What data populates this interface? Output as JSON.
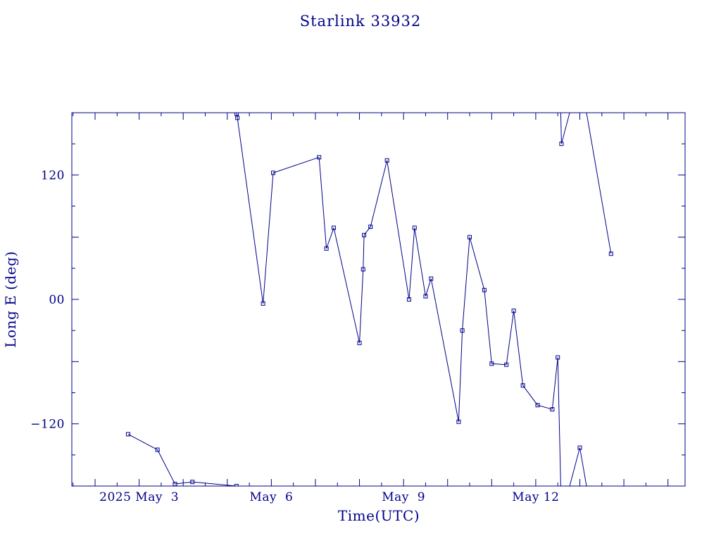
{
  "chart_data": {
    "type": "line",
    "title": "Starlink 33932",
    "xlabel": "Time(UTC)",
    "ylabel": "Long E (deg)",
    "color": "#00008b",
    "xlim": [
      "2025-05-01T11:20",
      "2025-05-15T09:20"
    ],
    "ylim": [
      -180,
      180
    ],
    "x_ticks": [
      {
        "date": "2025-05-03",
        "label": "2025 May  3"
      },
      {
        "date": "2025-05-06",
        "label": "May  6"
      },
      {
        "date": "2025-05-09",
        "label": "May  9"
      },
      {
        "date": "2025-05-12",
        "label": "May 12"
      }
    ],
    "y_ticks": [
      {
        "value": 120,
        "label": "120"
      },
      {
        "value": 0,
        "label": "00"
      },
      {
        "value": -120,
        "label": "−120"
      }
    ],
    "grid": false,
    "series": [
      {
        "wrap": true,
        "points": [
          {
            "t": "2025-05-02T18:00",
            "lon": -130
          },
          {
            "t": "2025-05-03T10:00",
            "lon": -145
          },
          {
            "t": "2025-05-03T19:30",
            "lon": -178
          },
          {
            "t": "2025-05-04T05:00",
            "lon": -176
          },
          {
            "t": "2025-05-05T05:00",
            "lon": -180
          },
          {
            "t": "2025-05-05T05:05",
            "lon": 179
          },
          {
            "t": "2025-05-05T05:30",
            "lon": 175
          },
          {
            "t": "2025-05-05T19:30",
            "lon": -4
          },
          {
            "t": "2025-05-06T01:00",
            "lon": 122
          },
          {
            "t": "2025-05-07T02:00",
            "lon": 137
          },
          {
            "t": "2025-05-07T06:00",
            "lon": 49
          },
          {
            "t": "2025-05-07T10:00",
            "lon": 69
          },
          {
            "t": "2025-05-08T00:00",
            "lon": -42
          },
          {
            "t": "2025-05-08T02:00",
            "lon": 29
          },
          {
            "t": "2025-05-08T02:30",
            "lon": 62
          },
          {
            "t": "2025-05-08T06:00",
            "lon": 70
          },
          {
            "t": "2025-05-08T15:00",
            "lon": 134
          },
          {
            "t": "2025-05-09T03:00",
            "lon": 0
          },
          {
            "t": "2025-05-09T06:00",
            "lon": 69
          },
          {
            "t": "2025-05-09T12:00",
            "lon": 3
          },
          {
            "t": "2025-05-09T15:00",
            "lon": 20
          },
          {
            "t": "2025-05-10T06:00",
            "lon": -118
          },
          {
            "t": "2025-05-10T08:00",
            "lon": -30
          },
          {
            "t": "2025-05-10T12:00",
            "lon": 60
          },
          {
            "t": "2025-05-10T20:00",
            "lon": 9
          },
          {
            "t": "2025-05-11T00:00",
            "lon": -62
          },
          {
            "t": "2025-05-11T08:00",
            "lon": -63
          },
          {
            "t": "2025-05-11T12:00",
            "lon": -11
          },
          {
            "t": "2025-05-11T17:00",
            "lon": -83
          },
          {
            "t": "2025-05-12T01:00",
            "lon": -102
          },
          {
            "t": "2025-05-12T09:00",
            "lon": -106
          },
          {
            "t": "2025-05-12T12:00",
            "lon": -56
          },
          {
            "t": "2025-05-12T14:00",
            "lon": 150
          },
          {
            "t": "2025-05-13T00:00",
            "lon": -143
          },
          {
            "t": "2025-05-13T17:00",
            "lon": 44
          }
        ]
      }
    ]
  }
}
